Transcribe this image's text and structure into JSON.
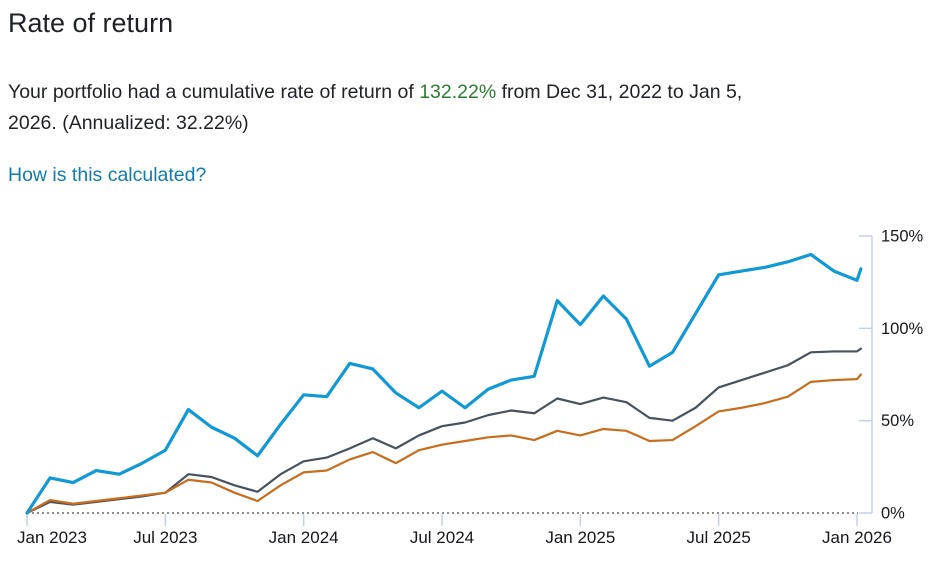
{
  "header": {
    "title": "Rate of return"
  },
  "summary": {
    "part1": "Your portfolio had a cumulative rate of return of ",
    "value": "132.22%",
    "value_color": "#2e7d32",
    "part2": " from Dec 31, 2022 to Jan 5,",
    "part3": "2026. (Annualized: 32.22%)"
  },
  "link": {
    "label": "How is this calculated?"
  },
  "chart_data": {
    "type": "line",
    "title": "",
    "xlabel": "",
    "ylabel": "",
    "x_unit": "months since Dec 31, 2022",
    "ylim": [
      0,
      150
    ],
    "grid": false,
    "legend": "none",
    "axis_side": "right",
    "axis_color": "#c5cfe8",
    "zero_line_style": "dotted",
    "zero_line_color": "#8b8b8b",
    "x": [
      0,
      1,
      2,
      3,
      4,
      5,
      6,
      7,
      8,
      9,
      10,
      11,
      12,
      13,
      14,
      15,
      16,
      17,
      18,
      19,
      20,
      21,
      22,
      23,
      24,
      25,
      26,
      27,
      28,
      29,
      30,
      31,
      32,
      33,
      34,
      35,
      36,
      36.17
    ],
    "x_ticks": [
      {
        "month": 0,
        "label": "Jan 2023"
      },
      {
        "month": 6,
        "label": "Jul 2023"
      },
      {
        "month": 12,
        "label": "Jan 2024"
      },
      {
        "month": 18,
        "label": "Jul 2024"
      },
      {
        "month": 24,
        "label": "Jan 2025"
      },
      {
        "month": 30,
        "label": "Jul 2025"
      },
      {
        "month": 36,
        "label": "Jan 2026"
      }
    ],
    "y_ticks": [
      {
        "value": 0,
        "label": "0%"
      },
      {
        "value": 50,
        "label": "50%"
      },
      {
        "value": 100,
        "label": "100%"
      },
      {
        "value": 150,
        "label": "150%"
      }
    ],
    "series": [
      {
        "name": "comparison_gray",
        "color": "#47525c",
        "width": 2.2,
        "values": [
          0,
          6,
          4.5,
          6,
          7.5,
          9,
          11,
          21,
          19.5,
          15,
          11.5,
          21,
          28,
          30,
          35,
          40.5,
          35,
          42,
          47,
          49,
          53,
          55.5,
          54,
          62,
          59,
          62.5,
          60,
          51.5,
          50,
          57,
          68,
          72,
          76,
          80,
          87,
          87.5,
          87.5,
          89
        ]
      },
      {
        "name": "comparison_orange",
        "color": "#c86d1d",
        "width": 2.2,
        "values": [
          0,
          7,
          5,
          6.5,
          8,
          9.5,
          11,
          18,
          16.5,
          11,
          6.5,
          15,
          22,
          23,
          29,
          33,
          27,
          34,
          37,
          39,
          41,
          42,
          39.5,
          44.5,
          42,
          45.5,
          44.5,
          39,
          39.5,
          47,
          55,
          57,
          59.5,
          63,
          71,
          72,
          72.5,
          75
        ]
      },
      {
        "name": "portfolio_blue",
        "color": "#1199d6",
        "width": 3.2,
        "values": [
          0,
          19,
          16.5,
          23,
          21,
          27,
          34,
          56,
          46.5,
          40.5,
          31,
          48,
          64,
          63,
          81,
          78,
          65,
          57,
          66,
          57,
          67,
          72,
          74,
          115,
          102,
          117.5,
          105,
          79.5,
          87,
          108,
          129,
          131,
          133,
          136,
          140,
          131,
          126,
          132.22
        ]
      }
    ],
    "end_value_portfolio": "132.22%"
  }
}
